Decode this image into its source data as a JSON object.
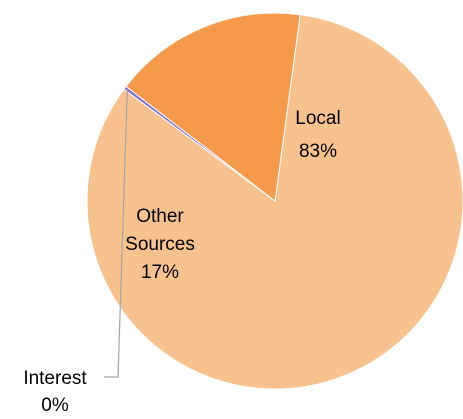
{
  "chart_data": {
    "type": "pie",
    "start_angle_deg": 277.7,
    "direction": "clockwise",
    "slices": [
      {
        "name": "Local",
        "value_label": "83%",
        "value": 83,
        "color": "#F8C28F"
      },
      {
        "name": "Interest",
        "value_label": "0%",
        "value": 0.3,
        "color": "#7F6FD0"
      },
      {
        "name": "Other Sources",
        "name_lines": [
          "Other",
          "Sources"
        ],
        "value_label": "17%",
        "value": 16.7,
        "color": "#F5994A"
      }
    ],
    "slice_border_color": "#FFFFFF",
    "leader_line_color": "#A6A6A6"
  }
}
